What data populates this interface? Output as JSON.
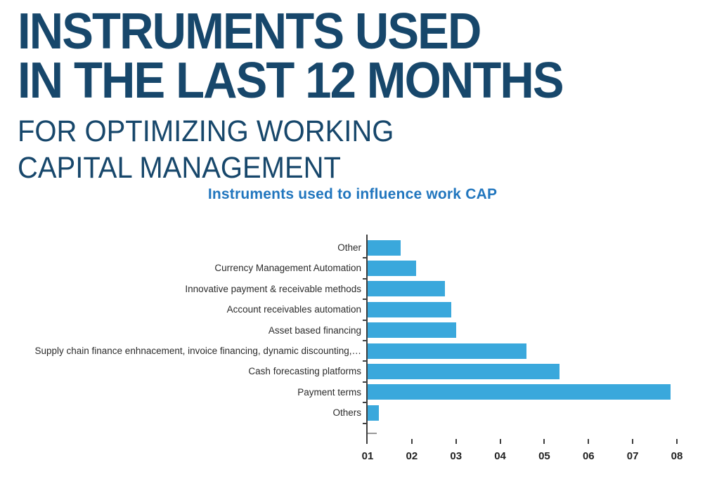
{
  "header": {
    "title_line1": "INSTRUMENTS USED",
    "title_line2": "IN THE LAST 12 MONTHS",
    "subtitle_line1": "FOR OPTIMIZING WORKING",
    "subtitle_line2": "CAPITAL MANAGEMENT",
    "title_color": "#17476B"
  },
  "chart_data": {
    "type": "bar",
    "orientation": "horizontal",
    "title": "Instruments used to influence work CAP",
    "title_color": "#2176BE",
    "bar_color": "#3AA8DC",
    "categories": [
      "Other",
      "Currency Management Automation",
      "Innovative payment & receivable methods",
      "Account receivables automation",
      "Asset based financing",
      "Supply chain finance enhnacement, invoice financing, dynamic discounting,…",
      "Cash forecasting platforms",
      "Payment terms",
      "Others"
    ],
    "values": [
      1.75,
      2.1,
      2.75,
      2.9,
      3.0,
      4.6,
      5.35,
      7.85,
      1.25
    ],
    "value_axis": {
      "start": 1,
      "end": 8,
      "tick_labels": [
        "01",
        "02",
        "03",
        "04",
        "05",
        "06",
        "07",
        "08"
      ]
    },
    "xlabel": "",
    "ylabel": "",
    "legend": null,
    "grid": false
  }
}
